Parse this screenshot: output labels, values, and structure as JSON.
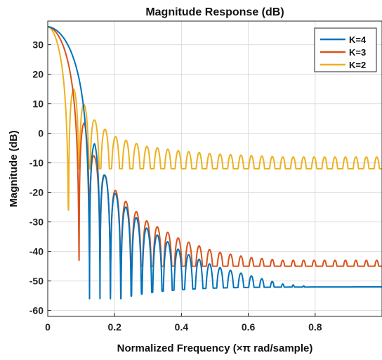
{
  "chart_data": {
    "type": "line",
    "title": "Magnitude Response (dB)",
    "xlabel": "Normalized Frequency (×π rad/sample)",
    "ylabel": "Magnitude (dB)",
    "xlim": [
      0,
      1
    ],
    "ylim": [
      -62,
      38
    ],
    "xticks": [
      0,
      0.2,
      0.4,
      0.6,
      0.8
    ],
    "xtick_labels": [
      "0",
      "0.2",
      "0.4",
      "0.6",
      "0.8"
    ],
    "yticks": [
      -60,
      -50,
      -40,
      -30,
      -20,
      -10,
      0,
      10,
      20,
      30
    ],
    "ytick_labels": [
      "-60",
      "-50",
      "-40",
      "-30",
      "-20",
      "-10",
      "0",
      "10",
      "20",
      "30"
    ],
    "grid": true,
    "legend_position": "top-right",
    "series": [
      {
        "name": "K=4",
        "color": "#0072BD",
        "peak_db": 36.1,
        "null_spacing": 0.03125,
        "first_null": 0.125,
        "sidelobe_peaks": [
          [
            0.14,
            -3.5
          ],
          [
            0.17,
            -14
          ],
          [
            0.2,
            -20
          ],
          [
            0.23,
            -24.5
          ],
          [
            0.26,
            -28
          ],
          [
            0.3,
            -32.5
          ],
          [
            0.35,
            -36
          ],
          [
            0.4,
            -40
          ],
          [
            0.5,
            -45
          ],
          [
            0.6,
            -48
          ],
          [
            0.7,
            -51
          ],
          [
            0.8,
            -52
          ],
          [
            0.9,
            -52
          ],
          [
            1.0,
            -52
          ]
        ]
      },
      {
        "name": "K=3",
        "color": "#D95319",
        "peak_db": 36.1,
        "null_spacing": 0.03125,
        "first_null": 0.09375,
        "sidelobe_peaks": [
          [
            0.11,
            3.5
          ],
          [
            0.14,
            -8
          ],
          [
            0.17,
            -14
          ],
          [
            0.2,
            -19
          ],
          [
            0.25,
            -25
          ],
          [
            0.3,
            -30
          ],
          [
            0.4,
            -36
          ],
          [
            0.5,
            -40
          ],
          [
            0.6,
            -42
          ],
          [
            0.7,
            -43
          ],
          [
            0.8,
            -43
          ],
          [
            0.9,
            -43
          ],
          [
            1.0,
            -43
          ]
        ]
      },
      {
        "name": "K=2",
        "color": "#EDB120",
        "peak_db": 36.1,
        "null_spacing": 0.03125,
        "first_null": 0.0625,
        "sidelobe_peaks": [
          [
            0.078,
            15
          ],
          [
            0.11,
            9.5
          ],
          [
            0.14,
            4.5
          ],
          [
            0.17,
            1.5
          ],
          [
            0.2,
            -1
          ],
          [
            0.25,
            -3
          ],
          [
            0.3,
            -4.5
          ],
          [
            0.4,
            -6
          ],
          [
            0.5,
            -7
          ],
          [
            0.6,
            -7.5
          ],
          [
            0.7,
            -8
          ],
          [
            0.8,
            -8
          ],
          [
            0.9,
            -8
          ],
          [
            1.0,
            -8
          ]
        ]
      }
    ]
  }
}
